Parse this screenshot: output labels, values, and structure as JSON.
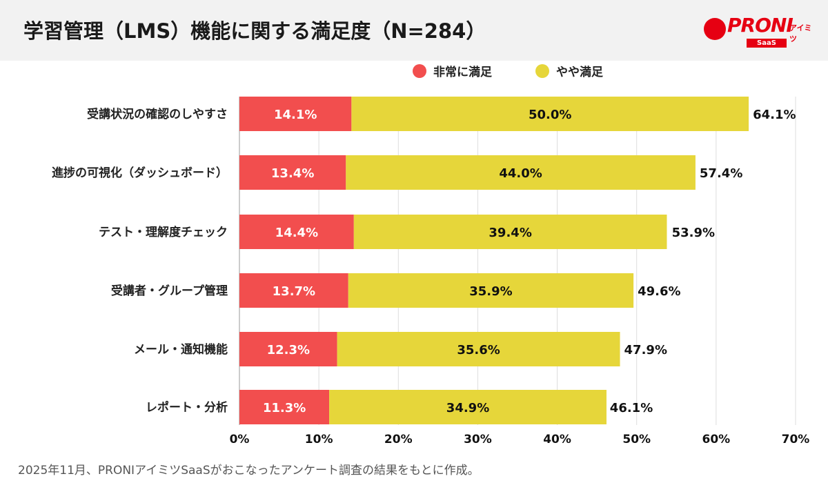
{
  "title": "学習管理（LMS）機能に関する満足度（N=284）",
  "logo": {
    "text": "PRONI",
    "sub": "アイミツ",
    "badge": "SaaS"
  },
  "footer": "2025年11月、PRONIアイミツSaaSがおこなったアンケート調査の結果をもとに作成。",
  "colors": {
    "very_satisfied": "#f24e4e",
    "somewhat_satisfied": "#e6d63a",
    "header_bg": "#f2f2f2"
  },
  "chart_data": {
    "type": "bar",
    "orientation": "horizontal",
    "stacked": true,
    "categories": [
      "受講状況の確認のしやすさ",
      "進捗の可視化（ダッシュボード）",
      "テスト・理解度チェック",
      "受講者・グループ管理",
      "メール・通知機能",
      "レポート・分析"
    ],
    "series": [
      {
        "name": "非常に満足",
        "values": [
          14.1,
          13.4,
          14.4,
          13.7,
          12.3,
          11.3
        ],
        "labels": [
          "14.1%",
          "13.4%",
          "14.4%",
          "13.7%",
          "12.3%",
          "11.3%"
        ]
      },
      {
        "name": "やや満足",
        "values": [
          50.0,
          44.0,
          39.4,
          35.9,
          35.6,
          34.9
        ],
        "labels": [
          "50.0%",
          "44.0%",
          "39.4%",
          "35.9%",
          "35.6%",
          "34.9%"
        ]
      }
    ],
    "totals": [
      "64.1%",
      "57.4%",
      "53.9%",
      "49.6%",
      "47.9%",
      "46.1%"
    ],
    "total_values": [
      64.1,
      57.4,
      53.9,
      49.6,
      47.9,
      46.1
    ],
    "xlim": [
      0,
      70
    ],
    "xticks": [
      "0%",
      "10%",
      "20%",
      "30%",
      "40%",
      "50%",
      "60%",
      "70%"
    ],
    "grid": true,
    "legend": "top-center"
  }
}
